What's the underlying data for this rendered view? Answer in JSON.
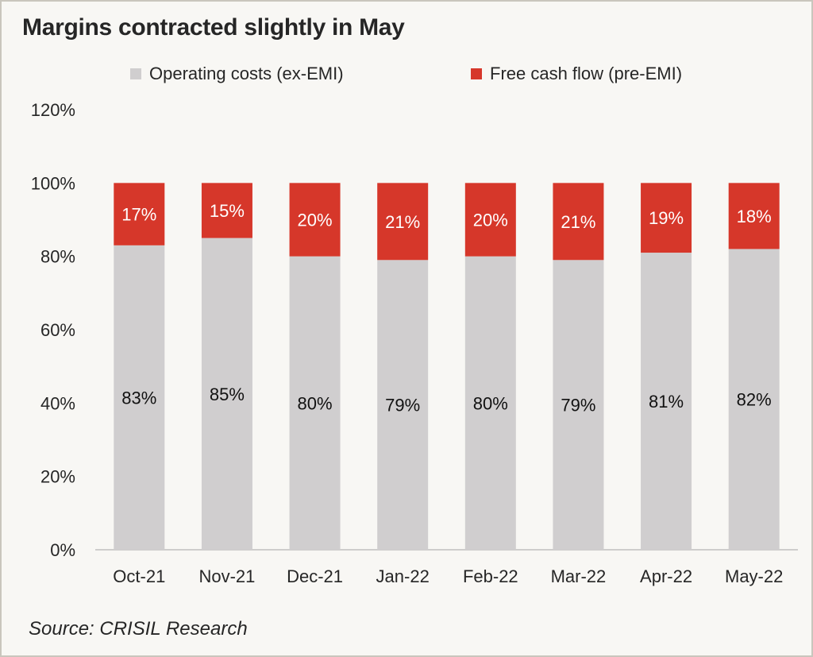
{
  "chart_data": {
    "type": "bar",
    "stacked": true,
    "title": "Margins contracted slightly in May",
    "categories": [
      "Oct-21",
      "Nov-21",
      "Dec-21",
      "Jan-22",
      "Feb-22",
      "Mar-22",
      "Apr-22",
      "May-22"
    ],
    "series": [
      {
        "name": "Operating costs (ex-EMI)",
        "color": "#d0cecf",
        "values": [
          83,
          85,
          80,
          79,
          80,
          79,
          81,
          82
        ],
        "labels": [
          "83%",
          "85%",
          "80%",
          "79%",
          "80%",
          "79%",
          "81%",
          "82%"
        ]
      },
      {
        "name": "Free cash flow (pre-EMI)",
        "color": "#d6372a",
        "values": [
          17,
          15,
          20,
          21,
          20,
          21,
          19,
          18
        ],
        "labels": [
          "17%",
          "15%",
          "20%",
          "21%",
          "20%",
          "21%",
          "19%",
          "18%"
        ]
      }
    ],
    "ylim": [
      0,
      120
    ],
    "yticks": [
      "0%",
      "20%",
      "40%",
      "60%",
      "80%",
      "100%",
      "120%"
    ],
    "legend_position": "top",
    "grid": false
  },
  "source": "Source:  CRISIL Research"
}
